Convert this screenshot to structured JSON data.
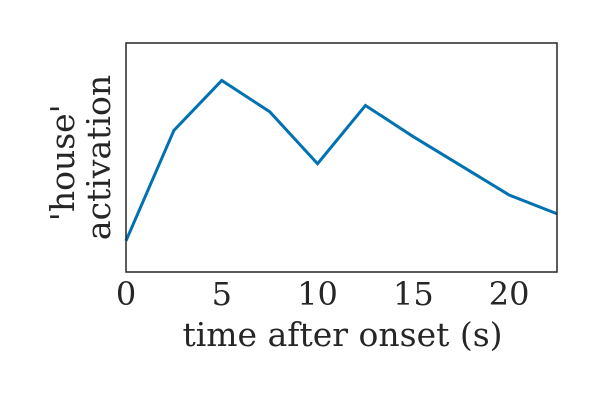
{
  "chart_data": {
    "type": "line",
    "x": [
      0,
      2.5,
      5,
      7.5,
      10,
      12.5,
      15,
      17.5,
      20,
      22.5
    ],
    "series": [
      {
        "values": [
          0.15,
          0.68,
          0.92,
          0.77,
          0.52,
          0.8,
          0.65,
          0.51,
          0.37,
          0.28
        ]
      }
    ],
    "xlabel": "time after onset (s)",
    "ylabel_lines": [
      "'house'",
      "activation"
    ],
    "xticks": [
      0,
      5,
      10,
      15,
      20
    ],
    "xlim": [
      0,
      22.5
    ],
    "ylim": [
      0,
      1.1
    ],
    "grid": false,
    "yticks_visible": false,
    "line_color": "#0072b2",
    "frame_color": "#262626"
  }
}
